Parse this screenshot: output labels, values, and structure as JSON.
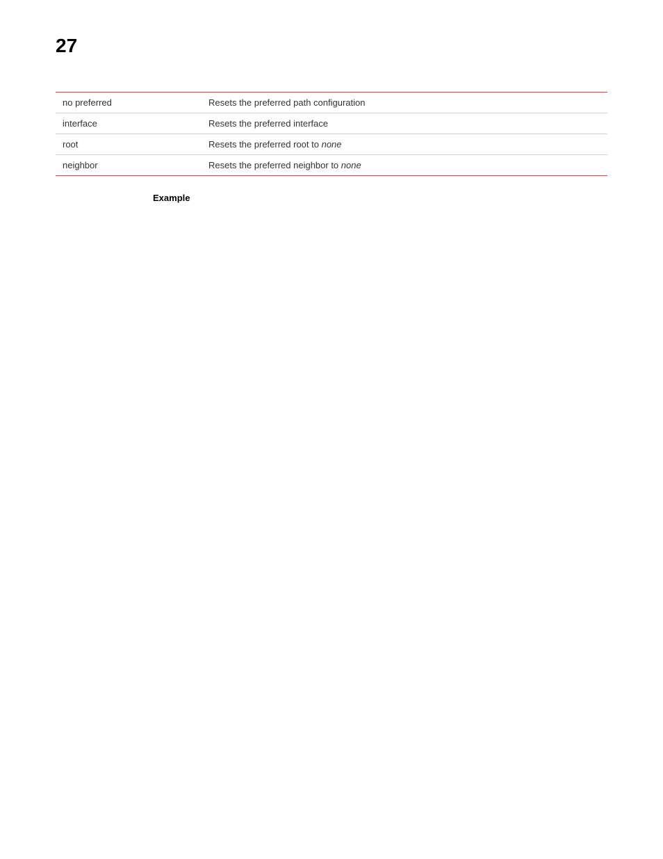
{
  "page_number": "27",
  "table": {
    "border_top_color": "#c8504e",
    "border_bottom_color": "#c8504e",
    "row_separator_color": "#d0d0d0",
    "text_color": "#333333",
    "font_size": 13,
    "rows": [
      {
        "key": "no preferred",
        "desc_prefix": "Resets the preferred path configuration",
        "desc_italic": ""
      },
      {
        "key": "interface",
        "desc_prefix": "Resets the preferred interface",
        "desc_italic": ""
      },
      {
        "key": "root",
        "desc_prefix": "Resets the preferred root to ",
        "desc_italic": "none"
      },
      {
        "key": "neighbor",
        "desc_prefix": "Resets the preferred neighbor to ",
        "desc_italic": "none"
      }
    ]
  },
  "example_heading": "Example"
}
